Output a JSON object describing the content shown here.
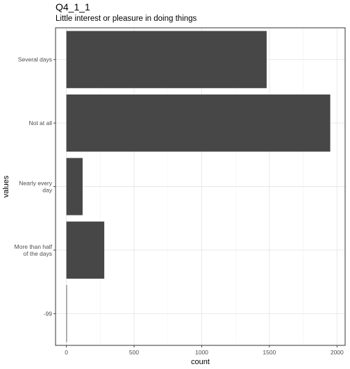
{
  "chart_data": {
    "type": "bar",
    "orientation": "horizontal",
    "title": "Q4_1_1",
    "subtitle": "Little interest or pleasure in doing things",
    "xlabel": "count",
    "ylabel": "values",
    "categories": [
      "Several days",
      "Not at all",
      "Nearly every day",
      "More than half of the days",
      "-99"
    ],
    "category_labels": [
      [
        "Several days"
      ],
      [
        "Not at all"
      ],
      [
        "Nearly every",
        "day"
      ],
      [
        "More than half",
        "of the days"
      ],
      [
        "-99"
      ]
    ],
    "values": [
      1480,
      1950,
      120,
      280,
      2
    ],
    "xlim": [
      -80,
      2060
    ],
    "x_ticks": [
      0,
      500,
      1000,
      1500,
      2000
    ],
    "grid": true,
    "bar_color": "#474747",
    "panel_border_color": "#333333",
    "grid_major_color": "#e6e6e6",
    "grid_minor_color": "#f3f3f3"
  }
}
